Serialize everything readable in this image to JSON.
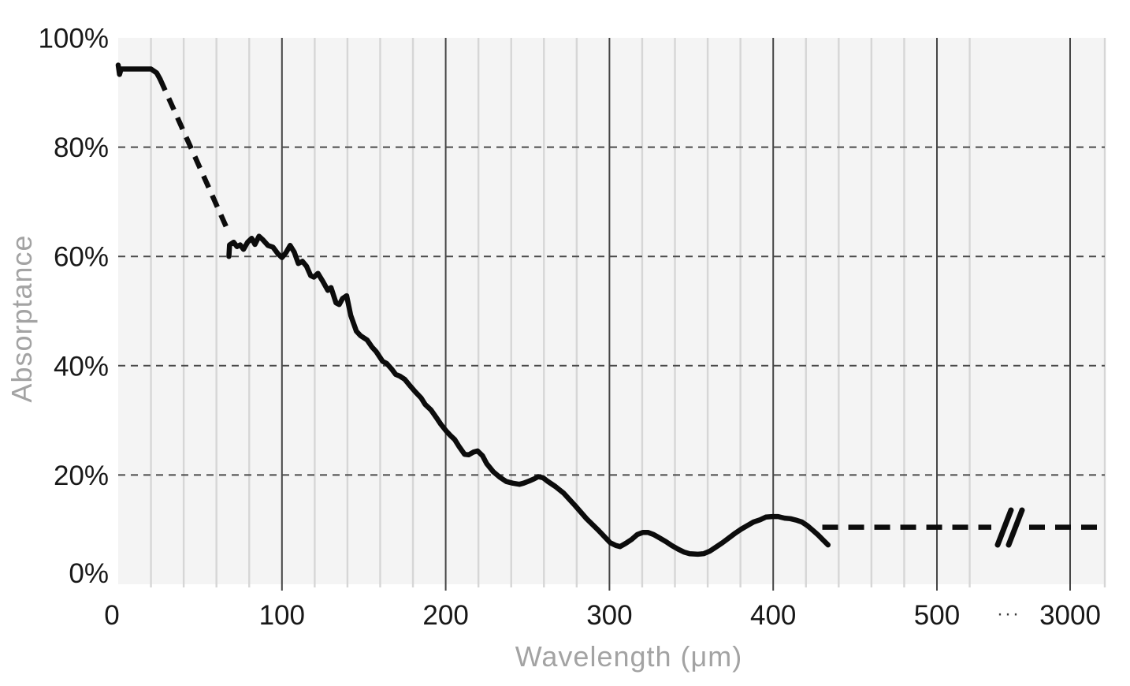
{
  "chart_data": {
    "type": "line",
    "title": "",
    "xlabel": "Wavelength (μm)",
    "ylabel": "Absorptance",
    "x_axis": {
      "unit": "μm",
      "ticks": [
        {
          "value": 0,
          "label": "0"
        },
        {
          "value": 100,
          "label": "100"
        },
        {
          "value": 200,
          "label": "200"
        },
        {
          "value": 300,
          "label": "300"
        },
        {
          "value": 400,
          "label": "400"
        },
        {
          "value": 500,
          "label": "500"
        },
        {
          "value": 3000,
          "label": "3000"
        }
      ],
      "minor_gridline_step": 20,
      "minor_gridline_max": 520,
      "break": {
        "between": [
          500,
          3000
        ],
        "label": "···",
        "marker": "//"
      }
    },
    "y_axis": {
      "unit": "%",
      "ticks": [
        {
          "value": 0,
          "label": "0%"
        },
        {
          "value": 20,
          "label": "20%"
        },
        {
          "value": 40,
          "label": "40%"
        },
        {
          "value": 60,
          "label": "60%"
        },
        {
          "value": 80,
          "label": "80%"
        },
        {
          "value": 100,
          "label": "100%"
        }
      ],
      "dashed_gridlines": [
        20,
        40,
        60,
        80
      ],
      "range": [
        0,
        100
      ]
    },
    "legend": null,
    "series": [
      {
        "name": "absorptance-start-solid",
        "style": "solid",
        "points": [
          [
            0,
            95.0
          ],
          [
            0.8,
            93.3
          ],
          [
            1.8,
            94.3
          ],
          [
            20,
            94.3
          ],
          [
            23.5,
            93.6
          ],
          [
            25.5,
            92.5
          ]
        ]
      },
      {
        "name": "absorptance-extrapolated-drop-dashed",
        "style": "dashed",
        "points": [
          [
            25.5,
            92.5
          ],
          [
            35,
            86.2
          ],
          [
            45,
            79.5
          ],
          [
            55,
            72.8
          ],
          [
            66,
            65.4
          ]
        ]
      },
      {
        "name": "absorptance-measured-solid",
        "style": "solid",
        "points": [
          [
            67.6,
            60.0
          ],
          [
            68.0,
            62.1
          ],
          [
            70.5,
            62.6
          ],
          [
            72.5,
            61.8
          ],
          [
            74.5,
            62.1
          ],
          [
            76.5,
            61.3
          ],
          [
            79,
            62.6
          ],
          [
            81.5,
            63.3
          ],
          [
            83.5,
            62.2
          ],
          [
            86,
            63.7
          ],
          [
            88.5,
            63.0
          ],
          [
            91.5,
            62.0
          ],
          [
            94.5,
            61.7
          ],
          [
            97.5,
            60.5
          ],
          [
            100,
            59.8
          ],
          [
            102.5,
            60.7
          ],
          [
            105,
            62.0
          ],
          [
            107.5,
            60.8
          ],
          [
            110,
            58.7
          ],
          [
            112.5,
            59.1
          ],
          [
            115,
            58.2
          ],
          [
            117.5,
            56.5
          ],
          [
            119.5,
            56.2
          ],
          [
            122,
            56.9
          ],
          [
            125,
            55.4
          ],
          [
            128,
            53.8
          ],
          [
            130,
            54.3
          ],
          [
            133,
            51.5
          ],
          [
            135,
            51.2
          ],
          [
            137,
            52.3
          ],
          [
            139.5,
            52.8
          ],
          [
            142,
            49.2
          ],
          [
            145.5,
            46.3
          ],
          [
            148,
            45.5
          ],
          [
            152,
            44.7
          ],
          [
            155,
            43.4
          ],
          [
            157.5,
            42.6
          ],
          [
            161.5,
            40.8
          ],
          [
            164,
            40.4
          ],
          [
            167,
            39.4
          ],
          [
            169.5,
            38.4
          ],
          [
            172,
            38.1
          ],
          [
            175,
            37.5
          ],
          [
            178,
            36.4
          ],
          [
            181.5,
            35.2
          ],
          [
            185,
            34.1
          ],
          [
            187.5,
            32.9
          ],
          [
            191,
            31.9
          ],
          [
            194.5,
            30.4
          ],
          [
            197,
            29.3
          ],
          [
            200.5,
            28.0
          ],
          [
            203,
            27.2
          ],
          [
            205.5,
            26.5
          ],
          [
            208,
            25.3
          ],
          [
            211.5,
            23.8
          ],
          [
            214,
            23.7
          ],
          [
            217,
            24.2
          ],
          [
            219.5,
            24.4
          ],
          [
            222.5,
            23.5
          ],
          [
            225,
            22.1
          ],
          [
            229,
            20.6
          ],
          [
            233,
            19.6
          ],
          [
            237,
            18.8
          ],
          [
            241,
            18.5
          ],
          [
            245,
            18.3
          ],
          [
            247.5,
            18.5
          ],
          [
            251,
            18.9
          ],
          [
            254,
            19.3
          ],
          [
            256.5,
            19.7
          ],
          [
            259.5,
            19.5
          ],
          [
            262,
            18.9
          ],
          [
            264.5,
            18.4
          ],
          [
            267,
            17.9
          ],
          [
            272,
            16.7
          ],
          [
            279,
            14.4
          ],
          [
            286,
            12.0
          ],
          [
            293.5,
            9.8
          ],
          [
            297,
            8.7
          ],
          [
            300.5,
            7.6
          ],
          [
            304,
            7.1
          ],
          [
            306.5,
            6.9
          ],
          [
            310,
            7.5
          ],
          [
            313.5,
            8.2
          ],
          [
            317,
            9.1
          ],
          [
            320.5,
            9.5
          ],
          [
            323.5,
            9.5
          ],
          [
            327,
            9.1
          ],
          [
            330.5,
            8.5
          ],
          [
            334.5,
            7.8
          ],
          [
            338,
            7.1
          ],
          [
            342,
            6.4
          ],
          [
            345.5,
            5.9
          ],
          [
            349,
            5.6
          ],
          [
            354,
            5.5
          ],
          [
            357.5,
            5.6
          ],
          [
            361.5,
            6.1
          ],
          [
            365,
            6.8
          ],
          [
            369,
            7.6
          ],
          [
            373,
            8.5
          ],
          [
            377,
            9.4
          ],
          [
            380.5,
            10.1
          ],
          [
            384.5,
            10.8
          ],
          [
            388,
            11.4
          ],
          [
            392,
            11.8
          ],
          [
            395.5,
            12.3
          ],
          [
            399.5,
            12.4
          ],
          [
            403,
            12.4
          ],
          [
            407,
            12.1
          ],
          [
            410.5,
            12.0
          ],
          [
            414.5,
            11.7
          ],
          [
            417.5,
            11.4
          ],
          [
            421,
            10.7
          ],
          [
            424.5,
            9.8
          ],
          [
            427.5,
            9.0
          ],
          [
            430.5,
            8.1
          ],
          [
            433.5,
            7.2
          ]
        ]
      },
      {
        "name": "absorptance-infrared-tail-dashed",
        "style": "dashed",
        "crosses_axis_break": true,
        "points": [
          [
            430,
            10.45
          ],
          [
            3020,
            10.45
          ]
        ]
      }
    ],
    "colors": {
      "line": "#0c0c0c",
      "plot_bg": "#f4f4f4",
      "minor_grid": "#d6d6d6",
      "major_grid": "#454545",
      "dashed_grid": "#4a4a4a",
      "tick_label": "#181818",
      "axis_title": "#a3a3a3",
      "break_dots": "#3c3c3c"
    },
    "grid": "on",
    "legend_position": "none"
  }
}
